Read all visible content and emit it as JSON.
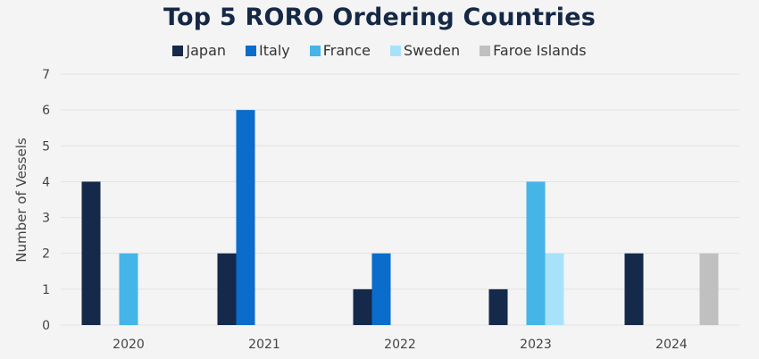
{
  "chart_data": {
    "type": "bar",
    "title": "Top 5 RORO Ordering Countries",
    "xlabel": "",
    "ylabel": "Number of Vessels",
    "ylim": [
      0,
      7
    ],
    "yticks": [
      "0",
      "1",
      "2",
      "3",
      "4",
      "5",
      "6",
      "7"
    ],
    "grid": true,
    "legend_position": "top",
    "categories": [
      "2020",
      "2021",
      "2022",
      "2023",
      "2024"
    ],
    "series": [
      {
        "name": "Japan",
        "color": "#15294a",
        "values": [
          4,
          2,
          1,
          1,
          2
        ]
      },
      {
        "name": "Italy",
        "color": "#0a6ccb",
        "values": [
          0,
          6,
          2,
          0,
          0
        ]
      },
      {
        "name": "France",
        "color": "#45b5e8",
        "values": [
          2,
          0,
          0,
          4,
          0
        ]
      },
      {
        "name": "Sweden",
        "color": "#a8e2fa",
        "values": [
          0,
          0,
          0,
          2,
          0
        ]
      },
      {
        "name": "Faroe Islands",
        "color": "#c0c0c0",
        "values": [
          0,
          0,
          0,
          0,
          2
        ]
      }
    ]
  }
}
